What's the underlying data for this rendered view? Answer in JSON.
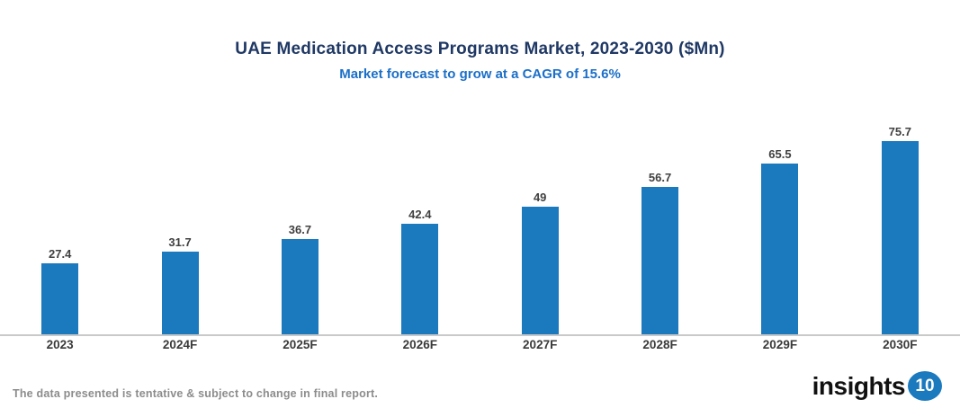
{
  "header": {
    "title": "UAE Medication Access Programs Market, 2023-2030 ($Mn)",
    "subtitle": "Market forecast to grow at a CAGR of 15.6%"
  },
  "chart_data": {
    "type": "bar",
    "title": "UAE Medication Access Programs Market, 2023-2030 ($Mn)",
    "subtitle": "Market forecast to grow at a CAGR of 15.6%",
    "categories": [
      "2023",
      "2024F",
      "2025F",
      "2026F",
      "2027F",
      "2028F",
      "2029F",
      "2030F"
    ],
    "values": [
      27.4,
      31.7,
      36.7,
      42.4,
      49,
      56.7,
      65.5,
      75.7
    ],
    "xlabel": "",
    "ylabel": "",
    "ylim": [
      0,
      80
    ],
    "grid": false,
    "legend": "none",
    "value_labels": true,
    "bar_color": "#1B79BE",
    "axis_line_color": "#C9C9C9"
  },
  "colors": {
    "title": "#1F3864",
    "subtitle": "#1B6FC8",
    "value_label": "#404040",
    "footer": "#8C8C8C",
    "logo_badge": "#1B79BE"
  },
  "footer": {
    "note": "The data presented is tentative & subject to change in final report.",
    "logo_text": "insights",
    "logo_badge": "10"
  }
}
